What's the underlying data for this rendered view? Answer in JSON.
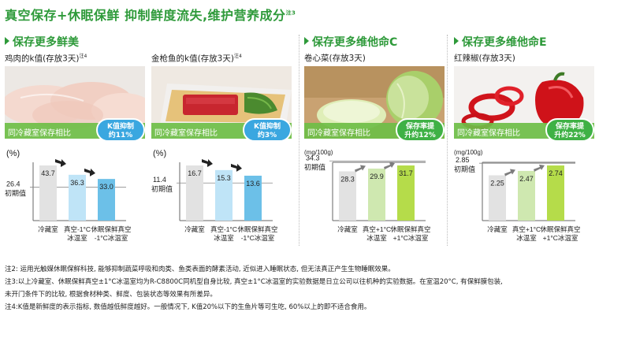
{
  "title": {
    "text": "真空保存+休眠保鲜  抑制鲜度流失,维护营养成分",
    "note": "注3"
  },
  "sections": [
    {
      "label": "保存更多鲜美"
    },
    {
      "label": "保存更多维他命C"
    },
    {
      "label": "保存更多维他命E"
    }
  ],
  "panels": [
    {
      "subtitle": "鸡肉的k值(存放3天)",
      "note": "注4",
      "photo": "chicken",
      "strip": "同冷藏室保存相比",
      "badge_line1": "K值抑制",
      "badge_line2": "约11%",
      "badge_color": "blue"
    },
    {
      "subtitle": "金枪鱼的k值(存放3天)",
      "note": "注4",
      "photo": "tuna",
      "strip": "同冷藏室保存相比",
      "badge_line1": "K值抑制",
      "badge_line2": "约3%",
      "badge_color": "blue"
    },
    {
      "subtitle": "卷心菜(存放3天)",
      "note": "",
      "photo": "cabbage",
      "strip": "同冷藏室保存相比",
      "badge_line1": "保存率提",
      "badge_line2": "升约12%",
      "badge_color": "green"
    },
    {
      "subtitle": "红辣椒(存放3天)",
      "note": "",
      "photo": "pepper",
      "strip": "同冷藏室保存相比",
      "badge_line1": "保存率提",
      "badge_line2": "升约22%",
      "badge_color": "green"
    }
  ],
  "chart_data": [
    {
      "type": "bar",
      "unit": "(%)",
      "initial_value": "26.4",
      "initial_label": "初期值",
      "categories": [
        "冷藏室",
        "真空-1°C 冰温室",
        "休眠保鲜真空 -1°C冰温室"
      ],
      "values": [
        43.7,
        36.3,
        33.0
      ],
      "value_labels": [
        "43.7",
        "36.3",
        "33.0"
      ],
      "colors": [
        "#e2e2e2",
        "#bfe4f7",
        "#6cc0e8"
      ]
    },
    {
      "type": "bar",
      "unit": "(%)",
      "initial_value": "11.4",
      "initial_label": "初期值",
      "categories": [
        "冷藏室",
        "真空-1°C 冰温室",
        "休眠保鲜真空 -1°C冰温室"
      ],
      "values": [
        16.7,
        15.3,
        13.6
      ],
      "value_labels": [
        "16.7",
        "15.3",
        "13.6"
      ],
      "colors": [
        "#e2e2e2",
        "#bfe4f7",
        "#6cc0e8"
      ]
    },
    {
      "type": "bar",
      "unit": "(mg/100g)",
      "initial_value": "34.3",
      "initial_label": "初期值",
      "categories": [
        "冷藏室",
        "真空+1°C 冰温室",
        "休眠保鲜真空 +1°C冰温室"
      ],
      "values": [
        28.3,
        29.9,
        31.7
      ],
      "value_labels": [
        "28.3",
        "29.9",
        "31.7"
      ],
      "colors": [
        "#e2e2e2",
        "#cfe8b0",
        "#b5dc4a"
      ]
    },
    {
      "type": "bar",
      "unit": "(mg/100g)",
      "initial_value": "2.85",
      "initial_label": "初期值",
      "categories": [
        "冷藏室",
        "真空+1°C 冰温室",
        "休眠保鲜真空 +1°C冰温室"
      ],
      "values": [
        2.25,
        2.47,
        2.74
      ],
      "value_labels": [
        "2.25",
        "2.47",
        "2.74"
      ],
      "colors": [
        "#e2e2e2",
        "#cfe8b0",
        "#b5dc4a"
      ]
    }
  ],
  "notes": [
    "注2: 运用光触媒休眠保鲜科技, 能够抑制蔬菜呼吸和肉类、鱼类表面的酵素活动, 近似进入睡眠状态, 但无法真正产生生物睡眠效果。",
    "注3:以上冷藏室、休眠保鲜真空±1°C冰温室均为R-C8800C同机型自身比较, 真空±1°C冰温室的实验数据是日立公司以往机种的实验数据。在室温20°C, 有保鲜膜包装,",
    "未开门条件下的比较, 根据食材种类、鲜度、包装状态等效果有所差异。",
    "注4:K值是新鲜度的表示指标, 数值越低鲜度越好。一般情况下, K值20%以下的生鱼片等可生吃, 60%以上的即不适合食用。"
  ]
}
